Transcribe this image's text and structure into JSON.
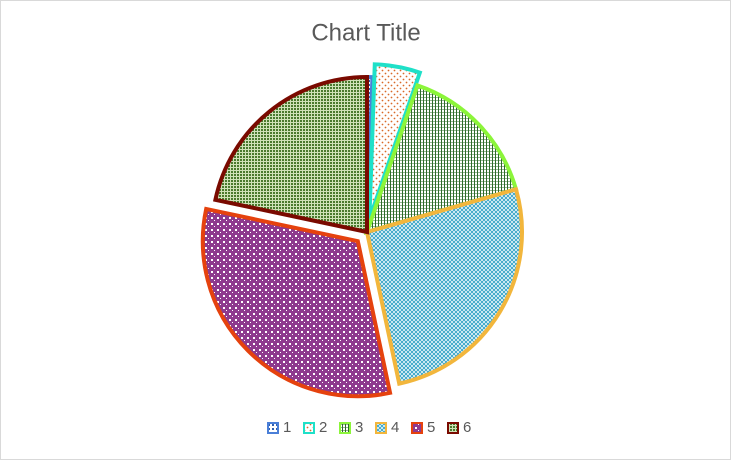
{
  "chart_data": {
    "type": "pie",
    "title": "Chart Title",
    "categories": [
      "1",
      "2",
      "3",
      "4",
      "5",
      "6"
    ],
    "values": [
      2,
      17,
      55,
      94,
      114,
      78
    ],
    "colors": [
      "#4a7fd8",
      "#1fe0c8",
      "#8cf53a",
      "#f2b63c",
      "#e5420e",
      "#7a0a00"
    ],
    "exploded": [
      false,
      true,
      false,
      false,
      true,
      false
    ],
    "legend": "bottom"
  }
}
